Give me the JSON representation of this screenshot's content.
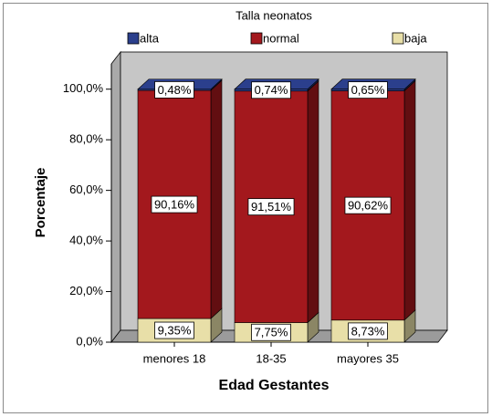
{
  "chart_data": {
    "type": "bar3d_stacked",
    "legend_title": "Talla neonatos",
    "categories": [
      "menores 18",
      "18-35",
      "mayores 35"
    ],
    "series": [
      {
        "name": "baja",
        "color": "#e8dfa8",
        "values": [
          9.35,
          7.75,
          8.73
        ],
        "value_labels": [
          "9,35%",
          "7,75%",
          "8,73%"
        ]
      },
      {
        "name": "normal",
        "color": "#a3181d",
        "values": [
          90.16,
          91.51,
          90.62
        ],
        "value_labels": [
          "90,16%",
          "91,51%",
          "90,62%"
        ]
      },
      {
        "name": "alta",
        "color": "#2b3f8c",
        "values": [
          0.48,
          0.74,
          0.65
        ],
        "value_labels": [
          "0,48%",
          "0,74%",
          "0,65%"
        ]
      }
    ],
    "legend_order": [
      "alta",
      "normal",
      "baja"
    ],
    "xlabel": "Edad Gestantes",
    "ylabel": "Porcentaje",
    "ylim": [
      0,
      110
    ],
    "yticks": [
      {
        "value": 0,
        "label": "0,0%"
      },
      {
        "value": 20,
        "label": "20,0%"
      },
      {
        "value": 40,
        "label": "40,0%"
      },
      {
        "value": 60,
        "label": "60,0%"
      },
      {
        "value": 80,
        "label": "80,0%"
      },
      {
        "value": 100,
        "label": "100,0%"
      }
    ]
  }
}
